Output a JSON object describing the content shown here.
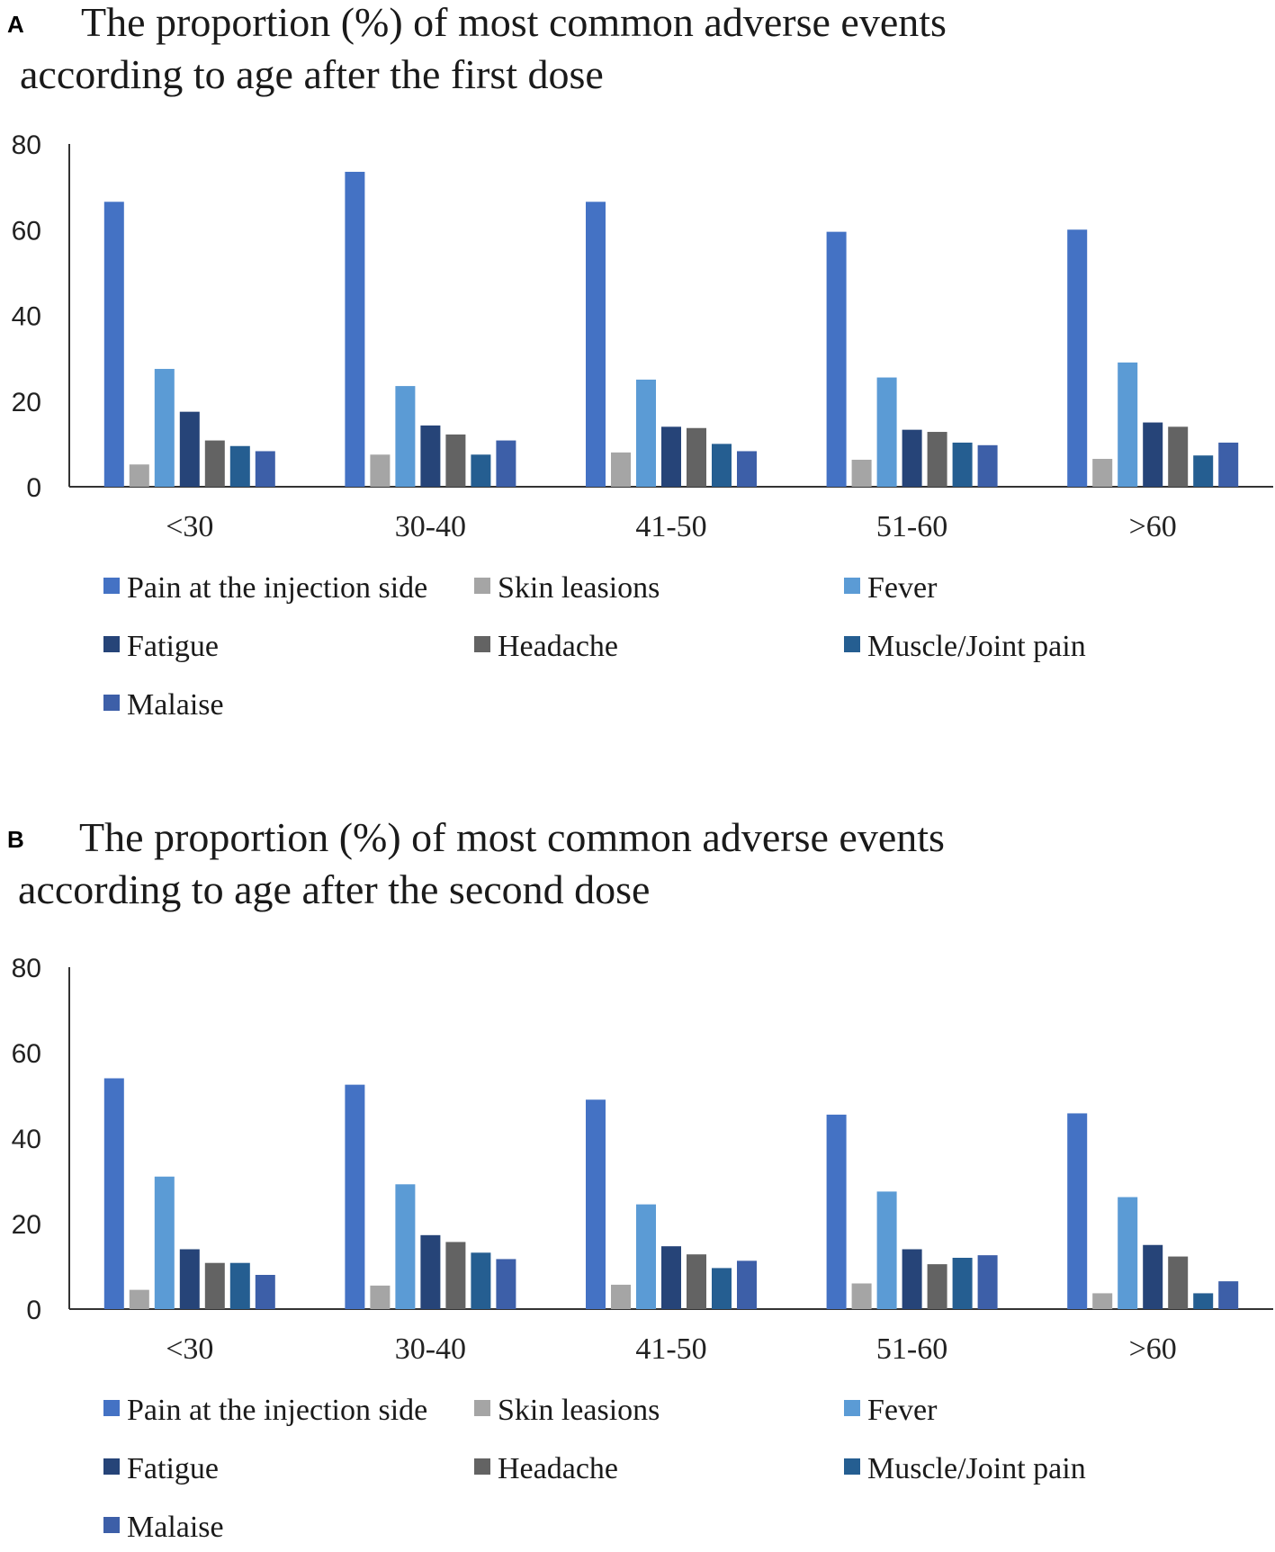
{
  "panels": [
    {
      "letter": "A",
      "title_line1": "The proportion (%) of most common adverse events",
      "title_line2": "according to age after the first dose"
    },
    {
      "letter": "B",
      "title_line1": "The proportion (%) of most common adverse events",
      "title_line2": "according to age after the second dose"
    }
  ],
  "colors": {
    "Pain at the injection side": "#4472C4",
    "Skin leasions": "#A5A5A5",
    "Fever": "#5B9BD5",
    "Fatigue": "#264478",
    "Headache": "#636363",
    "Muscle/Joint pain": "#255E91",
    "Malaise": "#3D5FA8"
  },
  "chart_data": [
    {
      "type": "bar",
      "title": "The proportion (%) of most common adverse events according to age after the first dose",
      "categories": [
        "<30",
        "30-40",
        "41-50",
        "51-60",
        ">60"
      ],
      "ylim": [
        0,
        80
      ],
      "yticks": [
        "0",
        "20",
        "40",
        "60",
        "80"
      ],
      "legend_position": "bottom",
      "series": [
        {
          "name": "Pain at the injection side",
          "values": [
            66.5,
            73.5,
            66.5,
            59.5,
            60
          ]
        },
        {
          "name": "Skin leasions",
          "values": [
            5.2,
            7.5,
            8,
            6.3,
            6.5
          ]
        },
        {
          "name": "Fever",
          "values": [
            27.5,
            23.5,
            25,
            25.5,
            29
          ]
        },
        {
          "name": "Fatigue",
          "values": [
            17.5,
            14.3,
            14,
            13.3,
            15
          ]
        },
        {
          "name": "Headache",
          "values": [
            10.8,
            12.2,
            13.7,
            12.8,
            14
          ]
        },
        {
          "name": "Muscle/Joint pain",
          "values": [
            9.5,
            7.5,
            10,
            10.3,
            7.3
          ]
        },
        {
          "name": "Malaise",
          "values": [
            8.3,
            10.8,
            8.3,
            9.7,
            10.3
          ]
        }
      ]
    },
    {
      "type": "bar",
      "title": "The proportion (%) of most common adverse events according to age after the second dose",
      "categories": [
        "<30",
        "30-40",
        "41-50",
        "51-60",
        ">60"
      ],
      "ylim": [
        0,
        80
      ],
      "yticks": [
        "0",
        "20",
        "40",
        "60",
        "80"
      ],
      "legend_position": "bottom",
      "series": [
        {
          "name": "Pain at the injection side",
          "values": [
            54,
            52.5,
            49,
            45.5,
            45.8
          ]
        },
        {
          "name": "Skin leasions",
          "values": [
            4.5,
            5.5,
            5.7,
            6,
            3.7
          ]
        },
        {
          "name": "Fever",
          "values": [
            31,
            29.2,
            24.5,
            27.5,
            26.2
          ]
        },
        {
          "name": "Fatigue",
          "values": [
            14,
            17.3,
            14.7,
            14,
            15
          ]
        },
        {
          "name": "Headache",
          "values": [
            10.8,
            15.7,
            12.8,
            10.5,
            12.3
          ]
        },
        {
          "name": "Muscle/Joint pain",
          "values": [
            10.8,
            13.2,
            9.6,
            12,
            3.7
          ]
        },
        {
          "name": "Malaise",
          "values": [
            8,
            11.7,
            11.3,
            12.6,
            6.5
          ]
        }
      ]
    }
  ]
}
